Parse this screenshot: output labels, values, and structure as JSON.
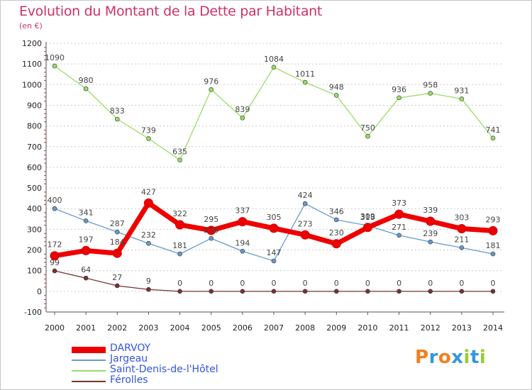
{
  "title": "Evolution du Montant de la Dette par Habitant",
  "subtitle": "(en €)",
  "brand": {
    "text": "Proxiti",
    "colors": [
      "#f08020",
      "#3399dd",
      "#f08020",
      "#3399dd",
      "#99cc33",
      "#3399dd",
      "#99cc33"
    ]
  },
  "chart_data": {
    "type": "line",
    "title": "Evolution du Montant de la Dette par Habitant",
    "subtitle": "(en €)",
    "x": [
      "2000",
      "2001",
      "2002",
      "2003",
      "2004",
      "2005",
      "2006",
      "2007",
      "2008",
      "2009",
      "2010",
      "2011",
      "2012",
      "2013",
      "2014"
    ],
    "ylim": [
      -100,
      1200
    ],
    "yticks": [
      -100,
      0,
      100,
      200,
      300,
      400,
      500,
      600,
      700,
      800,
      900,
      1000,
      1100,
      1200
    ],
    "grid": "horizontal dashed",
    "legend_position": "bottom-left",
    "series": [
      {
        "name": "DARVOY",
        "color": "#ee0000",
        "values": [
          172,
          197,
          184,
          427,
          322,
          295,
          337,
          305,
          273,
          230,
          309,
          373,
          339,
          303,
          293
        ]
      },
      {
        "name": "Jargeau",
        "color": "#6699cc",
        "values": [
          400,
          341,
          287,
          232,
          181,
          256,
          194,
          147,
          424,
          346,
          318,
          271,
          239,
          211,
          181
        ]
      },
      {
        "name": "Saint-Denis-de-l'Hôtel",
        "color": "#99dd66",
        "values": [
          1090,
          980,
          833,
          739,
          635,
          976,
          839,
          1084,
          1011,
          948,
          750,
          936,
          958,
          931,
          741
        ]
      },
      {
        "name": "Férolles",
        "color": "#773333",
        "values": [
          99,
          64,
          27,
          9,
          0,
          0,
          0,
          0,
          0,
          0,
          0,
          0,
          0,
          0,
          0
        ]
      }
    ]
  }
}
